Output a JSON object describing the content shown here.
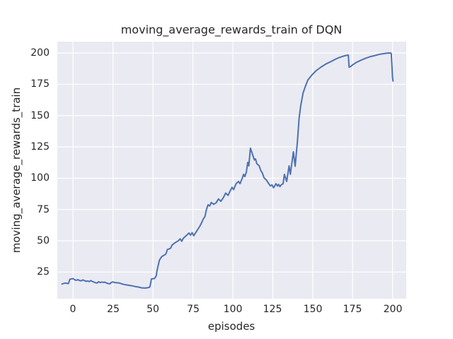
{
  "figure": {
    "background_color": "#ffffff",
    "text_color": "#262626"
  },
  "chart_data": {
    "type": "line",
    "title": "moving_average_rewards_train of DQN",
    "xlabel": "episodes",
    "ylabel": "moving_average_rewards_train",
    "xlim": [
      -9.9,
      208.6
    ],
    "ylim": [
      3.7,
      209.0
    ],
    "x_ticks": [
      0,
      25,
      50,
      75,
      100,
      125,
      150,
      175,
      200
    ],
    "y_ticks": [
      25,
      50,
      75,
      100,
      125,
      150,
      175,
      200
    ],
    "grid": true,
    "grid_color": "#ffffff",
    "plot_background": "#eaeaf2",
    "line_color": "#4c72b0",
    "line_width": 2,
    "legend": "none",
    "series": [
      {
        "name": "moving_average_rewards_train",
        "points": [
          [
            -7,
            15.5
          ],
          [
            -5,
            16.2
          ],
          [
            -3,
            15.8
          ],
          [
            -2,
            19.3
          ],
          [
            0,
            19.8
          ],
          [
            1,
            18.8
          ],
          [
            2,
            18.4
          ],
          [
            3,
            19
          ],
          [
            4,
            18.2
          ],
          [
            5,
            18
          ],
          [
            6,
            18.7
          ],
          [
            7,
            18.3
          ],
          [
            8,
            17.6
          ],
          [
            9,
            17.9
          ],
          [
            10,
            17.4
          ],
          [
            11,
            18.2
          ],
          [
            12,
            17.5
          ],
          [
            13,
            17
          ],
          [
            14,
            16.5
          ],
          [
            15,
            16.2
          ],
          [
            16,
            17.3
          ],
          [
            17,
            16.6
          ],
          [
            18,
            17
          ],
          [
            19,
            16.8
          ],
          [
            20,
            16.9
          ],
          [
            21,
            16.2
          ],
          [
            22,
            15.8
          ],
          [
            23,
            15.6
          ],
          [
            24,
            16.8
          ],
          [
            25,
            17.1
          ],
          [
            26,
            16.6
          ],
          [
            27,
            16.5
          ],
          [
            29,
            16.2
          ],
          [
            31,
            15.4
          ],
          [
            33,
            14.8
          ],
          [
            35,
            14.4
          ],
          [
            37,
            14
          ],
          [
            39,
            13.4
          ],
          [
            41,
            13
          ],
          [
            43,
            12.4
          ],
          [
            45,
            12.2
          ],
          [
            47,
            12.6
          ],
          [
            48,
            13
          ],
          [
            48.5,
            16
          ],
          [
            49,
            19.5
          ],
          [
            51,
            19.9
          ],
          [
            52,
            22
          ],
          [
            52.5,
            26
          ],
          [
            54,
            34.5
          ],
          [
            55.5,
            37.4
          ],
          [
            57,
            38.5
          ],
          [
            58,
            39.3
          ],
          [
            59,
            43
          ],
          [
            61,
            44
          ],
          [
            62,
            46.7
          ],
          [
            64,
            48.6
          ],
          [
            66,
            50.1
          ],
          [
            67,
            51.5
          ],
          [
            68,
            49.6
          ],
          [
            69,
            52
          ],
          [
            71,
            54.3
          ],
          [
            72.5,
            56.2
          ],
          [
            73.5,
            54.5
          ],
          [
            74.5,
            56.5
          ],
          [
            75.5,
            54
          ],
          [
            76.5,
            56
          ],
          [
            78,
            59
          ],
          [
            79.5,
            62
          ],
          [
            80.5,
            64.6
          ],
          [
            81.5,
            67.4
          ],
          [
            82.5,
            69.3
          ],
          [
            83.5,
            75
          ],
          [
            84.5,
            78.7
          ],
          [
            85.5,
            77.8
          ],
          [
            86.5,
            80.6
          ],
          [
            88,
            79.1
          ],
          [
            89.5,
            80.3
          ],
          [
            91,
            83.4
          ],
          [
            92.5,
            81.5
          ],
          [
            94,
            84.3
          ],
          [
            95.5,
            88.1
          ],
          [
            97,
            86.2
          ],
          [
            98,
            89
          ],
          [
            99.5,
            92.7
          ],
          [
            100.5,
            90.9
          ],
          [
            102,
            95.6
          ],
          [
            103.5,
            97.4
          ],
          [
            104.5,
            95.6
          ],
          [
            106,
            100.3
          ],
          [
            106.7,
            103.1
          ],
          [
            107.5,
            101.2
          ],
          [
            108.5,
            105
          ],
          [
            109.3,
            112.6
          ],
          [
            110,
            109.8
          ],
          [
            111,
            124
          ],
          [
            112.5,
            118.2
          ],
          [
            113.5,
            114.5
          ],
          [
            114.2,
            115.4
          ],
          [
            115,
            111.6
          ],
          [
            116.5,
            109.8
          ],
          [
            117.5,
            106
          ],
          [
            118.5,
            104.1
          ],
          [
            119.5,
            100.3
          ],
          [
            121,
            98.5
          ],
          [
            122.5,
            95.6
          ],
          [
            123.5,
            93.8
          ],
          [
            124.5,
            94.7
          ],
          [
            125.5,
            92.3
          ],
          [
            127,
            95.6
          ],
          [
            128,
            93.7
          ],
          [
            128.7,
            95
          ],
          [
            129.5,
            93.2
          ],
          [
            130.3,
            94.7
          ],
          [
            131.5,
            95.6
          ],
          [
            132.3,
            103
          ],
          [
            133.7,
            97.4
          ],
          [
            135.2,
            109.8
          ],
          [
            136,
            103.1
          ],
          [
            137.9,
            121
          ],
          [
            139,
            109.5
          ],
          [
            140.5,
            130
          ],
          [
            141.5,
            148
          ],
          [
            142.5,
            158
          ],
          [
            144,
            168
          ],
          [
            145.5,
            173.6
          ],
          [
            147,
            178.4
          ],
          [
            149.3,
            182.1
          ],
          [
            152.2,
            185.9
          ],
          [
            155.2,
            188.7
          ],
          [
            158.2,
            191.1
          ],
          [
            161.2,
            193
          ],
          [
            164.1,
            194.9
          ],
          [
            166.3,
            196.2
          ],
          [
            168.5,
            197.1
          ],
          [
            170,
            197.7
          ],
          [
            171.8,
            198.2
          ],
          [
            172.3,
            198.3
          ],
          [
            172.8,
            188.7
          ],
          [
            173.7,
            189.1
          ],
          [
            175,
            190.5
          ],
          [
            177.3,
            192.4
          ],
          [
            180.3,
            194.2
          ],
          [
            183.2,
            195.8
          ],
          [
            186.2,
            197.1
          ],
          [
            189.2,
            198
          ],
          [
            192.1,
            199
          ],
          [
            195.1,
            199.6
          ],
          [
            197.3,
            200
          ],
          [
            198.8,
            199.9
          ],
          [
            199.2,
            199.5
          ],
          [
            199.6,
            190
          ],
          [
            200,
            180.3
          ],
          [
            200.3,
            177.5
          ]
        ]
      }
    ]
  }
}
